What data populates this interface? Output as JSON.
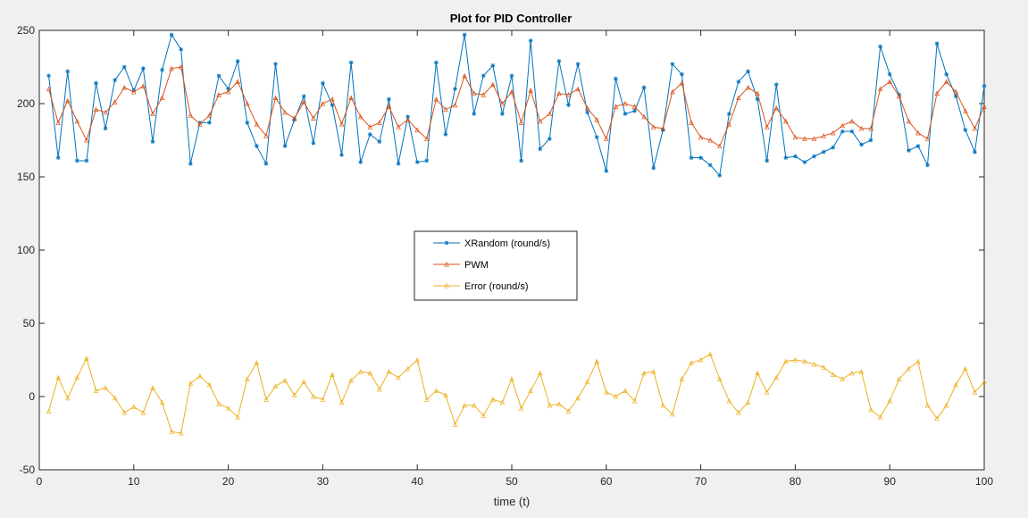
{
  "chart_data": {
    "type": "line",
    "title": "Plot for PID Controller",
    "xlabel": "time (t)",
    "ylabel": "",
    "xlim": [
      0,
      100
    ],
    "ylim": [
      -50,
      250
    ],
    "xticks": [
      0,
      10,
      20,
      30,
      40,
      50,
      60,
      70,
      80,
      90,
      100
    ],
    "yticks": [
      -50,
      0,
      50,
      100,
      150,
      200,
      250
    ],
    "grid": false,
    "legend_position": "center",
    "x": [
      1,
      2,
      3,
      4,
      5,
      6,
      7,
      8,
      9,
      10,
      11,
      12,
      13,
      14,
      15,
      16,
      17,
      18,
      19,
      20,
      21,
      22,
      23,
      24,
      25,
      26,
      27,
      28,
      29,
      30,
      31,
      32,
      33,
      34,
      35,
      36,
      37,
      38,
      39,
      40,
      41,
      42,
      43,
      44,
      45,
      46,
      47,
      48,
      49,
      50,
      51,
      52,
      53,
      54,
      55,
      56,
      57,
      58,
      59,
      60,
      61,
      62,
      63,
      64,
      65,
      66,
      67,
      68,
      69,
      70,
      71,
      72,
      73,
      74,
      75,
      76,
      77,
      78,
      79,
      80,
      81,
      82,
      83,
      84,
      85,
      86,
      87,
      88,
      89,
      90,
      91,
      92,
      93,
      94,
      95,
      96,
      97,
      98,
      99,
      100
    ],
    "series": [
      {
        "name": "XRandom (round/s)",
        "color": "#0072BD",
        "marker": "*",
        "values": [
          219,
          163,
          222,
          161,
          161,
          214,
          183,
          216,
          225,
          209,
          224,
          174,
          223,
          247,
          237,
          159,
          187,
          187,
          219,
          210,
          229,
          187,
          171,
          159,
          227,
          171,
          189,
          205,
          173,
          214,
          199,
          165,
          228,
          160,
          179,
          174,
          203,
          159,
          191,
          160,
          161,
          228,
          179,
          210,
          247,
          193,
          219,
          226,
          193,
          219,
          161,
          243,
          169,
          176,
          229,
          199,
          227,
          194,
          177,
          154,
          217,
          193,
          195,
          211,
          156,
          182,
          227,
          220,
          163,
          163,
          158,
          151,
          193,
          215,
          222,
          203,
          161,
          213,
          163,
          164,
          160,
          164,
          167,
          170,
          181,
          181,
          172,
          175,
          239,
          220,
          206,
          168,
          171,
          158,
          241,
          220,
          205,
          182,
          167,
          212
        ]
      },
      {
        "name": "PWM",
        "color": "#D95319",
        "marker": "^",
        "values": [
          210,
          187,
          202,
          188,
          175,
          196,
          194,
          201,
          211,
          208,
          212,
          193,
          204,
          224,
          225,
          192,
          186,
          192,
          206,
          208,
          215,
          200,
          186,
          178,
          204,
          194,
          190,
          201,
          190,
          200,
          203,
          186,
          204,
          191,
          184,
          187,
          198,
          184,
          189,
          182,
          176,
          203,
          196,
          199,
          219,
          207,
          206,
          213,
          200,
          208,
          187,
          209,
          188,
          193,
          207,
          206,
          210,
          197,
          189,
          176,
          198,
          200,
          198,
          191,
          184,
          183,
          208,
          214,
          187,
          177,
          175,
          171,
          186,
          204,
          211,
          207,
          184,
          197,
          188,
          177,
          176,
          176,
          178,
          180,
          185,
          188,
          183,
          183,
          210,
          215,
          205,
          188,
          180,
          176,
          207,
          215,
          208,
          195,
          183,
          198
        ]
      },
      {
        "name": "Error (round/s)",
        "color": "#EDB120",
        "marker": "^",
        "values": [
          -10,
          13,
          -1,
          13,
          26,
          4,
          6,
          -1,
          -11,
          -7,
          -11,
          6,
          -4,
          -24,
          -25,
          9,
          14,
          8,
          -5,
          -8,
          -14,
          12,
          23,
          -2,
          7,
          11,
          1,
          10,
          0,
          -2,
          15,
          -4,
          11,
          17,
          16,
          5,
          17,
          13,
          19,
          25,
          -2,
          4,
          1,
          -19,
          -6,
          -6,
          -13,
          -2,
          -4,
          12,
          -8,
          4,
          16,
          -6,
          -5,
          -10,
          -1,
          10,
          24,
          3,
          0,
          4,
          -3,
          16,
          17,
          -6,
          -12,
          12,
          23,
          25,
          29,
          12,
          -3,
          -11,
          -4,
          16,
          3,
          13,
          24,
          25,
          24,
          22,
          20,
          15,
          12,
          16,
          17,
          -9,
          -14,
          -3,
          12,
          19,
          24,
          -6,
          -15,
          -6,
          8,
          19,
          3,
          10
        ]
      }
    ]
  }
}
